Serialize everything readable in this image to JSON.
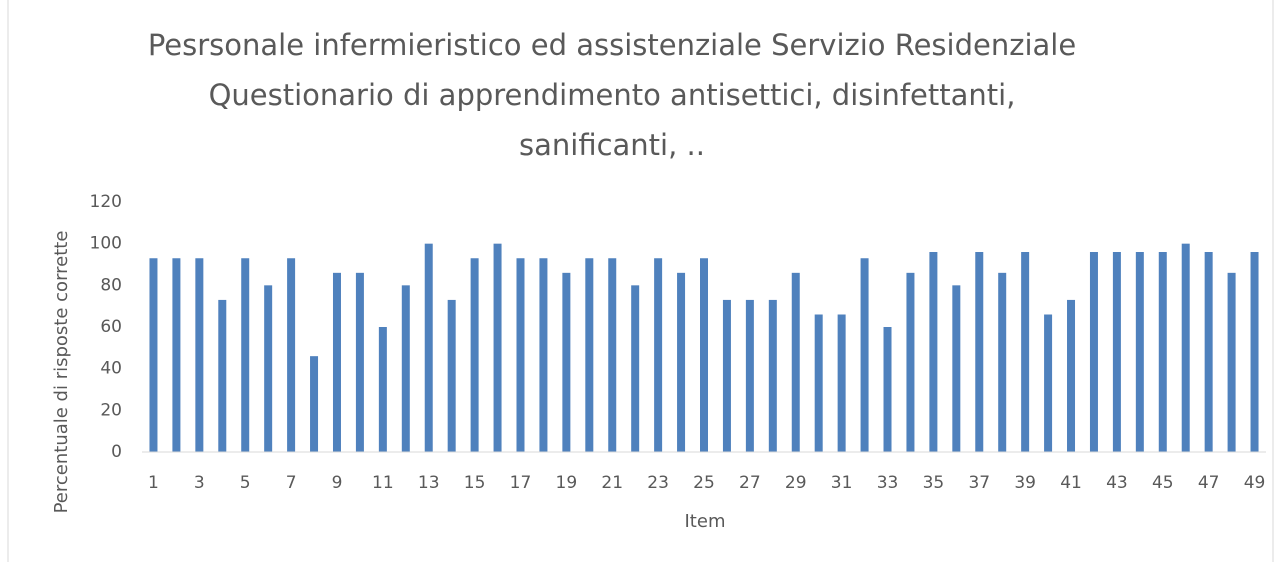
{
  "chart_data": {
    "type": "bar",
    "title": [
      "Pesrsonale infermieristico ed assistenziale Servizio Residenziale",
      "Questionario di apprendimento antisettici, disinfettanti,",
      "sanificanti, .."
    ],
    "x_label": "Item",
    "y_label": "Percentuale di risposte corrette",
    "categories": [
      "1",
      null,
      "3",
      null,
      "5",
      null,
      "7",
      null,
      "9",
      null,
      "11",
      null,
      "13",
      null,
      "15",
      null,
      "17",
      null,
      "19",
      null,
      "21",
      null,
      "23",
      null,
      "25",
      null,
      "27",
      null,
      "29",
      null,
      "31",
      null,
      "33",
      null,
      "35",
      null,
      "37",
      null,
      "39",
      null,
      "41",
      null,
      "43",
      null,
      "45",
      null,
      "47",
      null,
      "49"
    ],
    "values": [
      93,
      93,
      93,
      73,
      93,
      80,
      93,
      46,
      86,
      86,
      60,
      80,
      100,
      73,
      93,
      100,
      93,
      93,
      86,
      93,
      93,
      80,
      93,
      86,
      93,
      73,
      73,
      73,
      86,
      66,
      66,
      93,
      60,
      86,
      96,
      80,
      96,
      86,
      96,
      66,
      73,
      96,
      96,
      96,
      96,
      100,
      96,
      86,
      96
    ],
    "color": "#4f81bd",
    "ylim": [
      0,
      120
    ],
    "yticks": [
      0,
      20,
      40,
      60,
      80,
      100,
      120
    ],
    "grid": false
  }
}
